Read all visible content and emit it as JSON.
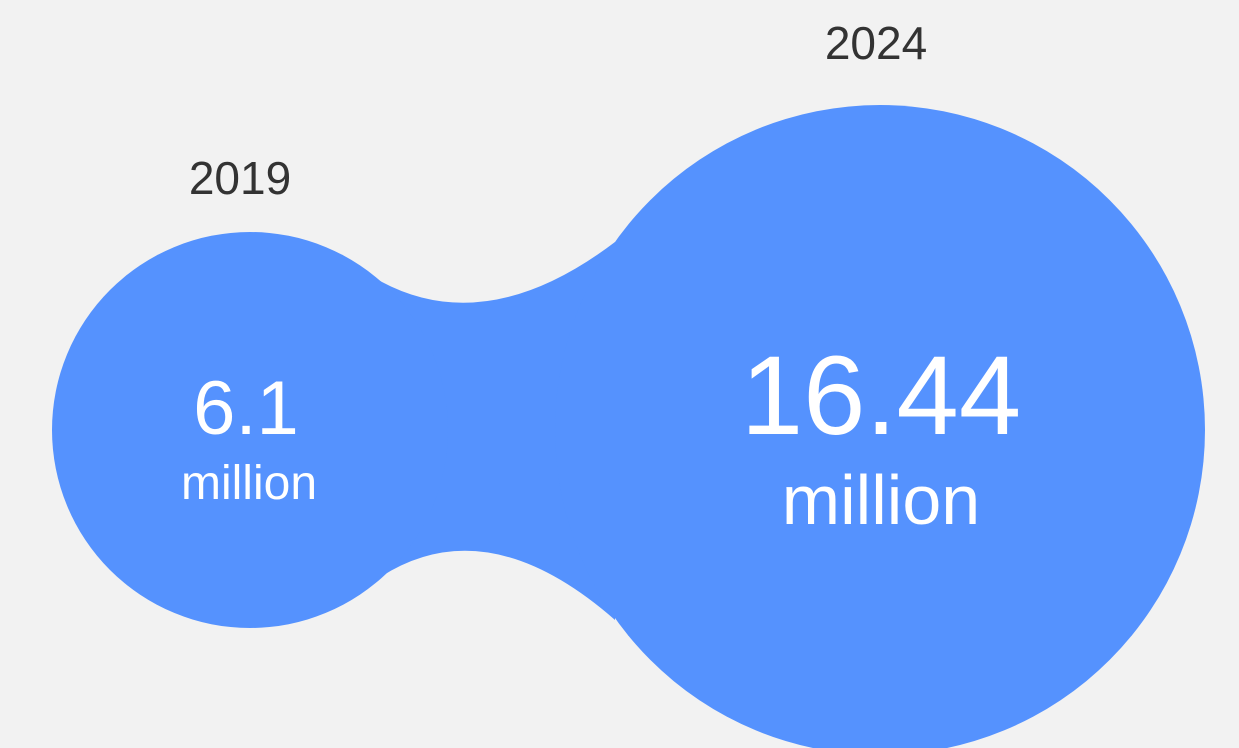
{
  "chart_data": {
    "type": "bubble",
    "categories": [
      "2019",
      "2024"
    ],
    "values": [
      6.1,
      16.44
    ],
    "value_labels": [
      "6.1",
      "16.44"
    ],
    "unit": "million",
    "colors": {
      "bubble": "#5592fe",
      "background": "#f2f2f2",
      "year_text": "#333333",
      "value_text": "#ffffff"
    }
  }
}
